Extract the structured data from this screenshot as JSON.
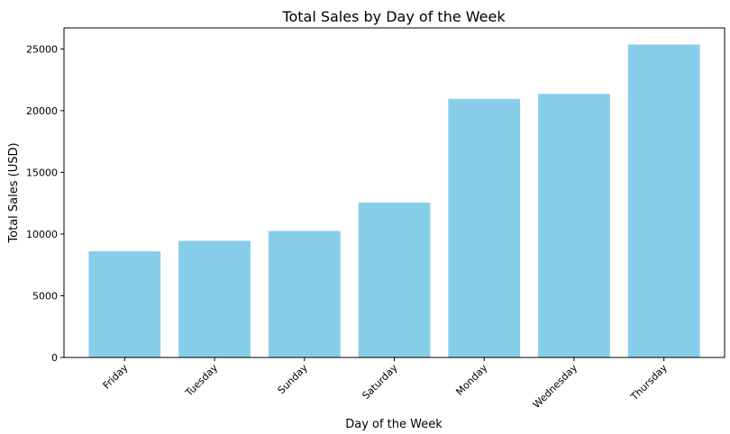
{
  "chart_data": {
    "type": "bar",
    "title": "Total Sales by Day of the Week",
    "xlabel": "Day of the Week",
    "ylabel": "Total Sales (USD)",
    "categories": [
      "Friday",
      "Tuesday",
      "Sunday",
      "Saturday",
      "Monday",
      "Wednesday",
      "Thursday"
    ],
    "values": [
      8600,
      9450,
      10250,
      12550,
      20950,
      21350,
      25350
    ],
    "ylim": [
      0,
      26700
    ],
    "yticks": [
      0,
      5000,
      10000,
      15000,
      20000,
      25000
    ],
    "bar_color": "#87CEEB",
    "grid": false,
    "legend": "none"
  }
}
